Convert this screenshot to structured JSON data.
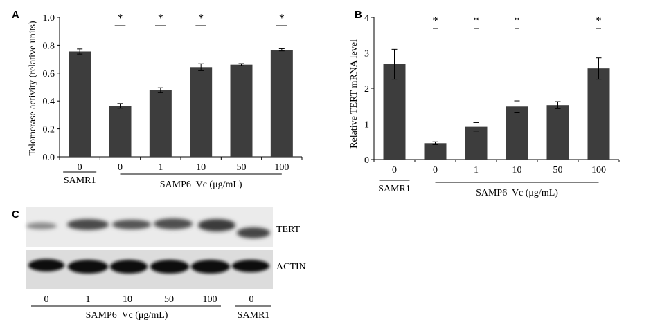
{
  "chart_data": [
    {
      "panel": "A",
      "type": "bar",
      "ylabel": "Telomerase activity (relative units)",
      "ylim": [
        0,
        1.0
      ],
      "yticks": [
        "0.0",
        "0.2",
        "0.4",
        "0.6",
        "0.8",
        "1.0"
      ],
      "categories": [
        "0",
        "0",
        "1",
        "10",
        "50",
        "100"
      ],
      "values": [
        0.755,
        0.365,
        0.478,
        0.642,
        0.66,
        0.767
      ],
      "errors": [
        0.018,
        0.017,
        0.016,
        0.025,
        0.008,
        0.008
      ],
      "bar_color": "#3d3d3d",
      "significance": [
        [
          1,
          2
        ],
        [
          2,
          3
        ],
        [
          3,
          4
        ],
        [
          5,
          6
        ]
      ],
      "star": "*",
      "group_labels": [
        "SAMR1",
        "SAMP6  Vc (μg/mL)"
      ]
    },
    {
      "panel": "B",
      "type": "bar",
      "ylabel": "Relative TERT mRNA level",
      "ylim": [
        0,
        4
      ],
      "yticks": [
        "0",
        "1",
        "2",
        "3",
        "4"
      ],
      "categories": [
        "0",
        "0",
        "1",
        "10",
        "50",
        "100"
      ],
      "values": [
        2.68,
        0.46,
        0.92,
        1.49,
        1.53,
        2.56
      ],
      "errors": [
        0.42,
        0.04,
        0.12,
        0.16,
        0.1,
        0.3
      ],
      "bar_color": "#3d3d3d",
      "significance": [
        [
          1,
          2
        ],
        [
          2,
          3
        ],
        [
          3,
          4
        ],
        [
          5,
          6
        ]
      ],
      "star": "*",
      "group_labels": [
        "SAMR1",
        "SAMP6  Vc (μg/mL)"
      ]
    }
  ],
  "blot": {
    "panel": "C",
    "bands": [
      "TERT",
      "ACTIN"
    ],
    "lanes": [
      "0",
      "1",
      "10",
      "50",
      "100",
      "0"
    ],
    "group_labels": [
      "SAMP6  Vc (μg/mL)",
      "SAMR1"
    ]
  }
}
